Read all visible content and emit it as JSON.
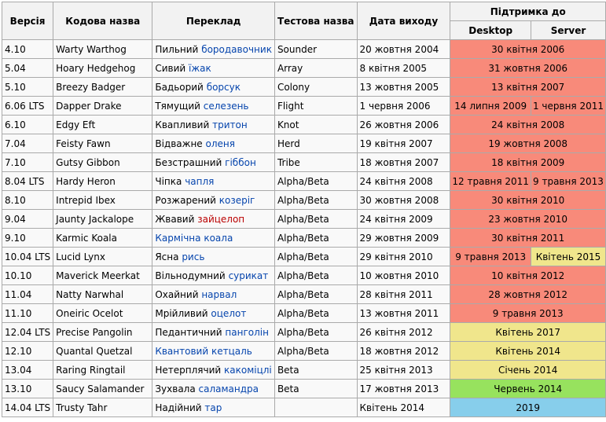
{
  "headers": {
    "version": "Версія",
    "codename": "Кодова назва",
    "translation": "Переклад",
    "test_name": "Тестова назва",
    "release_date": "Дата виходу",
    "support": "Підтримка до",
    "desktop": "Desktop",
    "server": "Server"
  },
  "colors": {
    "unsupported": "#f88a7a",
    "supported": "#f0e68c",
    "current": "#97e25e",
    "future": "#87ceeb",
    "link": "#0645ad",
    "missing_link": "#ba0000"
  },
  "rows": [
    {
      "version": "4.10",
      "codename": "Warty Warthog",
      "adj": "Пильний",
      "noun": "бородавочник",
      "noun_style": "link",
      "test": "Sounder",
      "date": "20 жовтня 2004",
      "support": [
        "30 квітня 2006"
      ],
      "color": "red"
    },
    {
      "version": "5.04",
      "codename": "Hoary Hedgehog",
      "adj": "Сивий",
      "noun": "їжак",
      "noun_style": "link",
      "test": "Array",
      "date": "8 квітня 2005",
      "support": [
        "31 жовтня 2006"
      ],
      "color": "red"
    },
    {
      "version": "5.10",
      "codename": "Breezy Badger",
      "adj": "Бадьорий",
      "noun": "борсук",
      "noun_style": "link",
      "test": "Colony",
      "date": "13 жовтня 2005",
      "support": [
        "13 квітня 2007"
      ],
      "color": "red"
    },
    {
      "version": "6.06 LTS",
      "codename": "Dapper Drake",
      "adj": "Тямущий",
      "noun": "селезень",
      "noun_style": "link",
      "test": "Flight",
      "date": "1 червня 2006",
      "support": [
        "14 липня 2009",
        "1 червня 2011"
      ],
      "color": "red"
    },
    {
      "version": "6.10",
      "codename": "Edgy Eft",
      "adj": "Квапливий",
      "noun": "тритон",
      "noun_style": "link",
      "test": "Knot",
      "date": "26 жовтня 2006",
      "support": [
        "24 квітня 2008"
      ],
      "color": "red"
    },
    {
      "version": "7.04",
      "codename": "Feisty Fawn",
      "adj": "Відважне",
      "noun": "оленя",
      "noun_style": "link",
      "test": "Herd",
      "date": "19 квітня 2007",
      "support": [
        "19 жовтня 2008"
      ],
      "color": "red"
    },
    {
      "version": "7.10",
      "codename": "Gutsy Gibbon",
      "adj": "Безстрашний",
      "noun": "гіббон",
      "noun_style": "link",
      "test": "Tribe",
      "date": "18 жовтня 2007",
      "support": [
        "18 квітня 2009"
      ],
      "color": "red"
    },
    {
      "version": "8.04 LTS",
      "codename": "Hardy Heron",
      "adj": "Чіпка",
      "noun": "чапля",
      "noun_style": "link",
      "test": "Alpha/Beta",
      "date": "24 квітня 2008",
      "support": [
        "12 травня 2011",
        "9 травня 2013"
      ],
      "color": "red"
    },
    {
      "version": "8.10",
      "codename": "Intrepid Ibex",
      "adj": "Розжарений",
      "noun": "козеріг",
      "noun_style": "link",
      "test": "Alpha/Beta",
      "date": "30 жовтня 2008",
      "support": [
        "30 квітня 2010"
      ],
      "color": "red"
    },
    {
      "version": "9.04",
      "codename": "Jaunty Jackalope",
      "adj": "Жвавий",
      "noun": "зайцелоп",
      "noun_style": "red",
      "test": "Alpha/Beta",
      "date": "24 квітня 2009",
      "support": [
        "23 жовтня 2010"
      ],
      "color": "red"
    },
    {
      "version": "9.10",
      "codename": "Karmic Koala",
      "adj": "",
      "noun": "Кармічна коала",
      "noun_style": "link",
      "test": "Alpha/Beta",
      "date": "29 жовтня 2009",
      "support": [
        "30 квітня 2011"
      ],
      "color": "red"
    },
    {
      "version": "10.04 LTS",
      "codename": "Lucid Lynx",
      "adj": "Ясна",
      "noun": "рись",
      "noun_style": "link",
      "test": "Alpha/Beta",
      "date": "29 квітня 2010",
      "support": [
        "9 травня 2013",
        "Квітень 2015"
      ],
      "color": "red",
      "color2": "yellow"
    },
    {
      "version": "10.10",
      "codename": "Maverick Meerkat",
      "adj": "Вільнодумний",
      "noun": "сурикат",
      "noun_style": "link",
      "test": "Alpha/Beta",
      "date": "10 жовтня 2010",
      "support": [
        "10 квітня 2012"
      ],
      "color": "red"
    },
    {
      "version": "11.04",
      "codename": "Natty Narwhal",
      "adj": "Охайний",
      "noun": "нарвал",
      "noun_style": "link",
      "test": "Alpha/Beta",
      "date": "28 квітня 2011",
      "support": [
        "28 жовтня 2012"
      ],
      "color": "red"
    },
    {
      "version": "11.10",
      "codename": "Oneiric Ocelot",
      "adj": "Мрійливий",
      "noun": "оцелот",
      "noun_style": "link",
      "test": "Alpha/Beta",
      "date": "13 жовтня 2011",
      "support": [
        "9 травня 2013"
      ],
      "color": "red"
    },
    {
      "version": "12.04 LTS",
      "codename": "Precise Pangolin",
      "adj": "Педантичний",
      "noun": "панголін",
      "noun_style": "link",
      "test": "Alpha/Beta",
      "date": "26 квітня 2012",
      "support": [
        "Квітень 2017"
      ],
      "color": "yellow"
    },
    {
      "version": "12.10",
      "codename": "Quantal Quetzal",
      "adj": "",
      "noun": "Квантовий кетцаль",
      "noun_style": "link",
      "test": "Alpha/Beta",
      "date": "18 жовтня 2012",
      "support": [
        "Квітень 2014"
      ],
      "color": "yellow"
    },
    {
      "version": "13.04",
      "codename": "Raring Ringtail",
      "adj": "Нетерплячий",
      "noun": "какоміцлі",
      "noun_style": "link",
      "test": "Beta",
      "date": "25 квітня 2013",
      "support": [
        "Січень 2014"
      ],
      "color": "yellow"
    },
    {
      "version": "13.10",
      "codename": "Saucy Salamander",
      "adj": "Зухвала",
      "noun": "саламандра",
      "noun_style": "link",
      "test": "Beta",
      "date": "17 жовтня 2013",
      "support": [
        "Червень 2014"
      ],
      "color": "green"
    },
    {
      "version": "14.04 LTS",
      "codename": "Trusty Tahr",
      "adj": "Надійний",
      "noun": "тар",
      "noun_style": "link",
      "test": "",
      "date": "Квітень 2014",
      "support": [
        "2019"
      ],
      "color": "blue"
    }
  ]
}
